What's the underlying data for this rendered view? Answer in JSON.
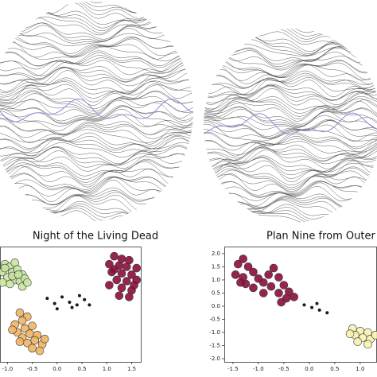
{
  "chart_data": [
    {
      "type": "scatter",
      "title": "Night of the Living Dead",
      "xlim": [
        -1.15,
        1.7
      ],
      "ylim": [
        -2.12,
        2.27
      ],
      "xticks": [
        {
          "value": -1.0,
          "label": "-1.0"
        },
        -0.5,
        {
          "value": 0.0,
          "label": "0.0"
        },
        0.5,
        {
          "value": 1.0,
          "label": "1.0"
        },
        1.5
      ],
      "series": [
        {
          "color": "#c8e6a0",
          "x": [
            -1.05,
            -0.95,
            -0.85,
            -1.1,
            -0.9,
            -0.8,
            -0.7,
            -1.0,
            -0.85,
            -0.75,
            -0.95,
            -1.1,
            -0.65,
            -0.7,
            -0.9,
            -1.05,
            -0.78,
            -0.6
          ],
          "y": [
            1.6,
            1.5,
            1.65,
            1.3,
            1.3,
            1.4,
            1.2,
            1.1,
            1.0,
            0.95,
            0.85,
            0.9,
            1.05,
            0.75,
            1.15,
            1.45,
            1.2,
            0.9
          ]
        },
        {
          "color": "#f0b464",
          "x": [
            -0.75,
            -0.6,
            -0.7,
            -0.85,
            -0.5,
            -0.65,
            -0.8,
            -0.55,
            -0.4,
            -0.7,
            -0.45,
            -0.6,
            -0.3,
            -0.5,
            -0.35,
            -0.75,
            -0.9,
            -0.25
          ],
          "y": [
            -0.25,
            -0.4,
            -0.55,
            -0.7,
            -0.75,
            -0.85,
            -1.0,
            -1.05,
            -1.1,
            -1.2,
            -1.3,
            -1.4,
            -1.45,
            -1.6,
            -1.7,
            -1.35,
            -0.9,
            -1.25
          ]
        },
        {
          "color": "#000000",
          "x": [
            -0.2,
            -0.05,
            0.1,
            0.25,
            0.4,
            0.55,
            0.3,
            0.65,
            0.0,
            0.45
          ],
          "y": [
            0.3,
            0.1,
            0.35,
            0.15,
            0.05,
            0.25,
            -0.05,
            0.05,
            -0.1,
            0.4
          ]
        },
        {
          "color": "#8c0c3c",
          "x": [
            1.15,
            1.3,
            1.45,
            1.05,
            1.25,
            1.4,
            1.6,
            1.1,
            1.3,
            1.5,
            1.2,
            1.4,
            1.6,
            1.05,
            1.3,
            1.5,
            1.25,
            1.45,
            1.15,
            1.55
          ],
          "y": [
            1.9,
            1.8,
            1.75,
            1.6,
            1.55,
            1.5,
            1.45,
            1.3,
            1.25,
            1.2,
            1.0,
            0.95,
            1.0,
            0.8,
            0.7,
            0.6,
            0.4,
            0.35,
            1.4,
            0.8
          ]
        }
      ]
    },
    {
      "type": "scatter",
      "title": "Plan Nine from Outer S",
      "xlim": [
        -1.67,
        1.33
      ],
      "ylim": [
        -2.12,
        2.27
      ],
      "xticks": [
        -1.5,
        {
          "value": -1.0,
          "label": "-1.0"
        },
        -0.5,
        {
          "value": 0.0,
          "label": "0.0"
        },
        0.5,
        {
          "value": 1.0,
          "label": "1.0"
        }
      ],
      "yticks": [
        {
          "value": -2.0,
          "label": "-2.0"
        },
        -1.5,
        {
          "value": -1.0,
          "label": "-1.0"
        },
        -0.5,
        {
          "value": 0.0,
          "label": "0.0"
        },
        0.5,
        {
          "value": 1.0,
          "label": "1.0"
        },
        1.5,
        {
          "value": 2.0,
          "label": "2.0"
        }
      ],
      "series": [
        {
          "color": "#8c0c3c",
          "x": [
            -1.4,
            -1.3,
            -1.2,
            -1.45,
            -1.3,
            -1.1,
            -1.0,
            -1.25,
            -1.1,
            -0.9,
            -0.8,
            -0.7,
            -0.6,
            -0.75,
            -0.5,
            -0.6,
            -0.4,
            -0.45,
            -0.3,
            -0.9,
            -1.35,
            -0.55
          ],
          "y": [
            1.6,
            1.8,
            1.5,
            1.2,
            1.1,
            1.3,
            1.05,
            0.85,
            0.7,
            0.9,
            1.2,
            1.45,
            1.1,
            0.75,
            0.8,
            0.5,
            0.55,
            0.3,
            0.35,
            0.5,
            0.9,
            0.15
          ]
        },
        {
          "color": "#000000",
          "x": [
            -0.1,
            0.05,
            0.2,
            0.35,
            0.15
          ],
          "y": [
            0.05,
            -0.05,
            -0.15,
            -0.25,
            0.1
          ]
        },
        {
          "color": "#f7f2b0",
          "x": [
            0.85,
            1.0,
            1.15,
            0.9,
            1.05,
            1.2,
            0.95,
            1.15,
            1.3,
            0.8
          ],
          "y": [
            -0.85,
            -0.95,
            -1.0,
            -1.1,
            -1.2,
            -1.25,
            -1.35,
            -1.45,
            -1.1,
            -1.05
          ]
        }
      ]
    }
  ]
}
